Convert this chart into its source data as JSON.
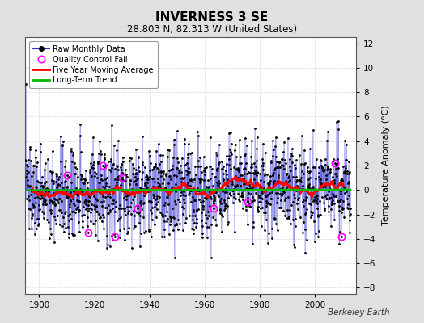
{
  "title": "INVERNESS 3 SE",
  "subtitle": "28.803 N, 82.313 W (United States)",
  "ylabel": "Temperature Anomaly (°C)",
  "watermark": "Berkeley Earth",
  "xlim": [
    1895,
    2015
  ],
  "ylim": [
    -8.5,
    12.5
  ],
  "yticks": [
    -8,
    -6,
    -4,
    -2,
    0,
    2,
    4,
    6,
    8,
    10,
    12
  ],
  "xticks": [
    1900,
    1920,
    1940,
    1960,
    1980,
    2000
  ],
  "bg_color": "#e0e0e0",
  "plot_bg_color": "#ffffff",
  "raw_line_color": "#3333cc",
  "raw_marker_color": "#000000",
  "qc_color": "#ff00ff",
  "moving_avg_color": "#ff0000",
  "trend_color": "#00bb00",
  "seed": 137,
  "start_year": 1895,
  "end_year": 2013
}
